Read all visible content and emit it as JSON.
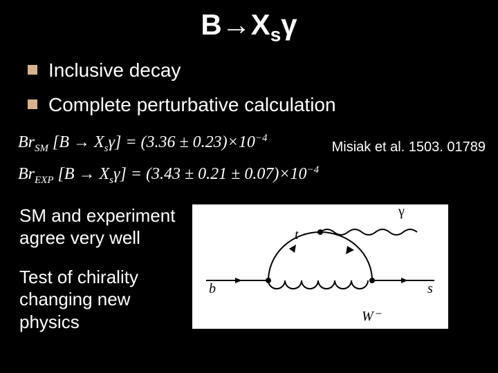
{
  "title_html": "B→X<sub>s</sub>γ",
  "bullets": [
    "Inclusive decay",
    "Complete perturbative calculation"
  ],
  "citation": "Misiak et al. 1503. 01789",
  "formulas": {
    "sm_html": "Br<span class='sub'>SM</span> [B → X<span class='sub'>s</span>γ] = (3.36 ± 0.23)×10<span class='sup'>−4</span>",
    "exp_html": "Br<span class='sub'>EXP</span> [B → X<span class='sub'>s</span>γ] = (3.43 ± 0.21 ± 0.07)×10<span class='sup'>−4</span>"
  },
  "left_text": {
    "block1": "SM and experiment agree very well",
    "block2": "Test of chirality changing new physics"
  },
  "diagram": {
    "labels": {
      "b": "b",
      "s": "s",
      "t": "t",
      "w": "W⁻",
      "gamma": "γ"
    },
    "colors": {
      "bg": "#ffffff",
      "line": "#000000",
      "text": "#000000"
    }
  }
}
